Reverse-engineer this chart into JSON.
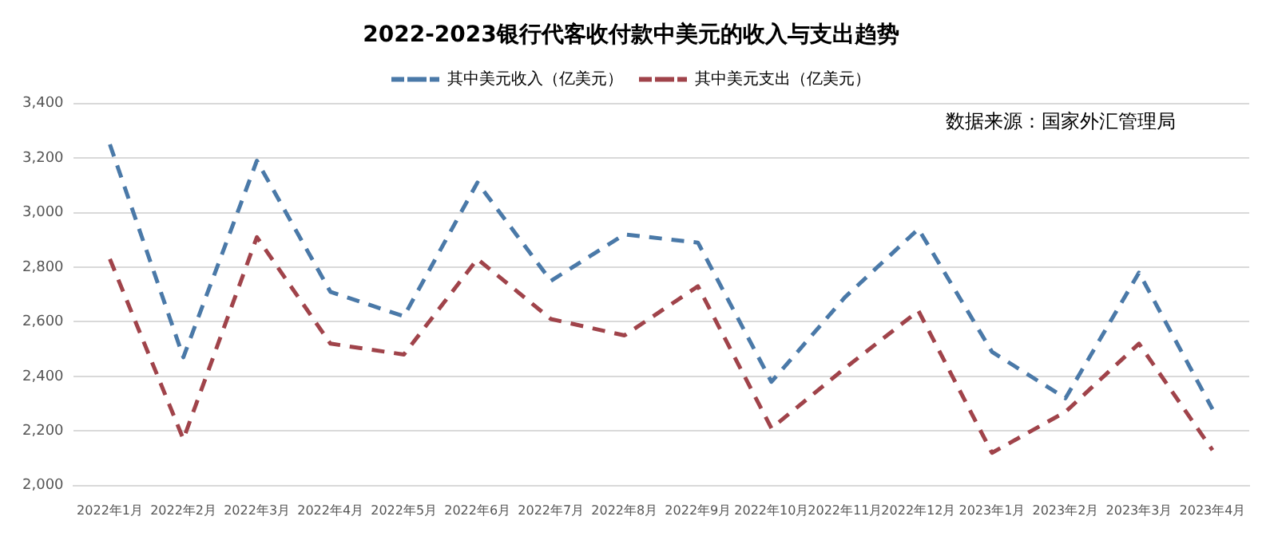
{
  "chart_data": {
    "type": "line",
    "title": "2022-2023银行代客收付款中美元的收入与支出趋势",
    "categories": [
      "2022年1月",
      "2022年2月",
      "2022年3月",
      "2022年4月",
      "2022年5月",
      "2022年6月",
      "2022年7月",
      "2022年8月",
      "2022年9月",
      "2022年10月",
      "2022年11月",
      "2022年12月",
      "2023年1月",
      "2023年2月",
      "2023年3月",
      "2023年4月"
    ],
    "series": [
      {
        "name": "其中美元收入（亿美元）",
        "color": "#4a79a8",
        "values": [
          3250,
          2470,
          3190,
          2710,
          2620,
          3110,
          2750,
          2920,
          2890,
          2380,
          2690,
          2940,
          2490,
          2320,
          2780,
          2280
        ]
      },
      {
        "name": "其中美元支出（亿美元）",
        "color": "#a0434a",
        "values": [
          2830,
          2170,
          2910,
          2520,
          2480,
          2830,
          2610,
          2550,
          2730,
          2210,
          2430,
          2640,
          2120,
          2270,
          2520,
          2130
        ]
      }
    ],
    "ylim": [
      2000,
      3400
    ],
    "yticks": [
      {
        "value": 2000,
        "label": "2,000"
      },
      {
        "value": 2200,
        "label": "2,200"
      },
      {
        "value": 2400,
        "label": "2,400"
      },
      {
        "value": 2600,
        "label": "2,600"
      },
      {
        "value": 2800,
        "label": "2,800"
      },
      {
        "value": 3000,
        "label": "3,000"
      },
      {
        "value": 3200,
        "label": "3,200"
      },
      {
        "value": 3400,
        "label": "3,400"
      }
    ],
    "grid": "y",
    "legend": "top",
    "line_style": "dashed",
    "marker": "none",
    "annotations": [
      "数据来源：国家外汇管理局"
    ]
  }
}
